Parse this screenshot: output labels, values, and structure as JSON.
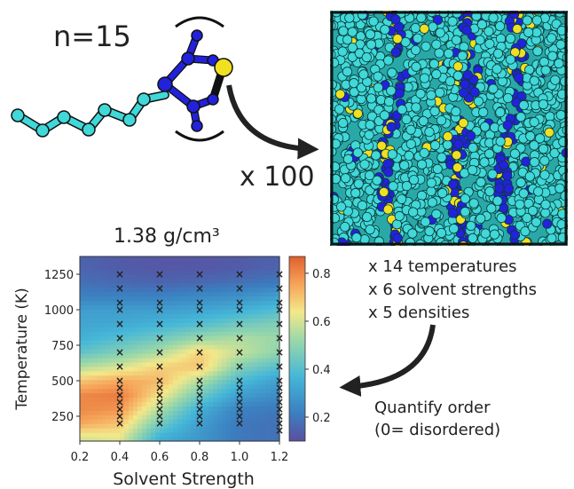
{
  "molecule": {
    "label": "n=15"
  },
  "multiplier": "x 100",
  "parameters": [
    "x 14 temperatures",
    "x 6 solvent strengths",
    "x 5 densities"
  ],
  "quantify": [
    "Quantify order",
    "(0= disordered)"
  ],
  "colors": {
    "chain": "#40d8d8",
    "ring": "#2222dd",
    "sulfur": "#f0e020",
    "bond": "#111111"
  },
  "chart_data": {
    "type": "heatmap",
    "title": "1.38 g/cm³",
    "xlabel": "Solvent Strength",
    "ylabel": "Temperature (K)",
    "xlim": [
      0.2,
      1.2
    ],
    "ylim": [
      75,
      1375
    ],
    "xticks": [
      "0.2",
      "0.4",
      "0.6",
      "0.8",
      "1.0",
      "1.2"
    ],
    "yticks": [
      "250",
      "500",
      "750",
      "1000",
      "1250"
    ],
    "colorbar": {
      "range": [
        0.1,
        0.87
      ],
      "ticks": [
        "0.2",
        "0.4",
        "0.6",
        "0.8"
      ]
    },
    "sample_x": [
      0.2,
      0.4,
      0.6,
      0.8,
      1.0,
      1.2
    ],
    "sample_t": [
      100,
      200,
      300,
      400,
      500,
      600,
      700,
      800,
      900,
      1000,
      1100,
      1200,
      1300
    ],
    "order_grid": [
      [
        0.6,
        0.62,
        0.35,
        0.28,
        0.2,
        0.18
      ],
      [
        0.75,
        0.7,
        0.45,
        0.3,
        0.2,
        0.18
      ],
      [
        0.8,
        0.78,
        0.55,
        0.35,
        0.22,
        0.2
      ],
      [
        0.8,
        0.82,
        0.65,
        0.45,
        0.3,
        0.25
      ],
      [
        0.7,
        0.75,
        0.72,
        0.55,
        0.38,
        0.3
      ],
      [
        0.55,
        0.6,
        0.68,
        0.7,
        0.48,
        0.4
      ],
      [
        0.42,
        0.48,
        0.55,
        0.68,
        0.58,
        0.5
      ],
      [
        0.35,
        0.4,
        0.45,
        0.52,
        0.55,
        0.52
      ],
      [
        0.32,
        0.33,
        0.36,
        0.4,
        0.45,
        0.48
      ],
      [
        0.3,
        0.3,
        0.3,
        0.32,
        0.35,
        0.4
      ],
      [
        0.22,
        0.22,
        0.22,
        0.24,
        0.26,
        0.3
      ],
      [
        0.18,
        0.16,
        0.15,
        0.16,
        0.18,
        0.2
      ],
      [
        0.15,
        0.13,
        0.12,
        0.12,
        0.13,
        0.15
      ]
    ],
    "sample_markers": [
      {
        "x": 0.4,
        "t": [
          200,
          250,
          300,
          350,
          400,
          450,
          500,
          600,
          700,
          800,
          900,
          1000,
          1050,
          1150,
          1250
        ]
      },
      {
        "x": 0.6,
        "t": [
          200,
          250,
          300,
          350,
          400,
          450,
          500,
          600,
          700,
          800,
          900,
          1000,
          1050,
          1150,
          1250
        ]
      },
      {
        "x": 0.8,
        "t": [
          200,
          250,
          300,
          350,
          400,
          450,
          500,
          600,
          700,
          800,
          900,
          1000,
          1050,
          1150,
          1250
        ]
      },
      {
        "x": 1.0,
        "t": [
          200,
          250,
          300,
          350,
          400,
          450,
          500,
          600,
          700,
          800,
          900,
          1000,
          1050,
          1150,
          1250
        ]
      },
      {
        "x": 1.2,
        "t": [
          150,
          200,
          250,
          300,
          350,
          400,
          450,
          500,
          600,
          700,
          800,
          900,
          1000,
          1050,
          1150,
          1250
        ]
      }
    ]
  }
}
